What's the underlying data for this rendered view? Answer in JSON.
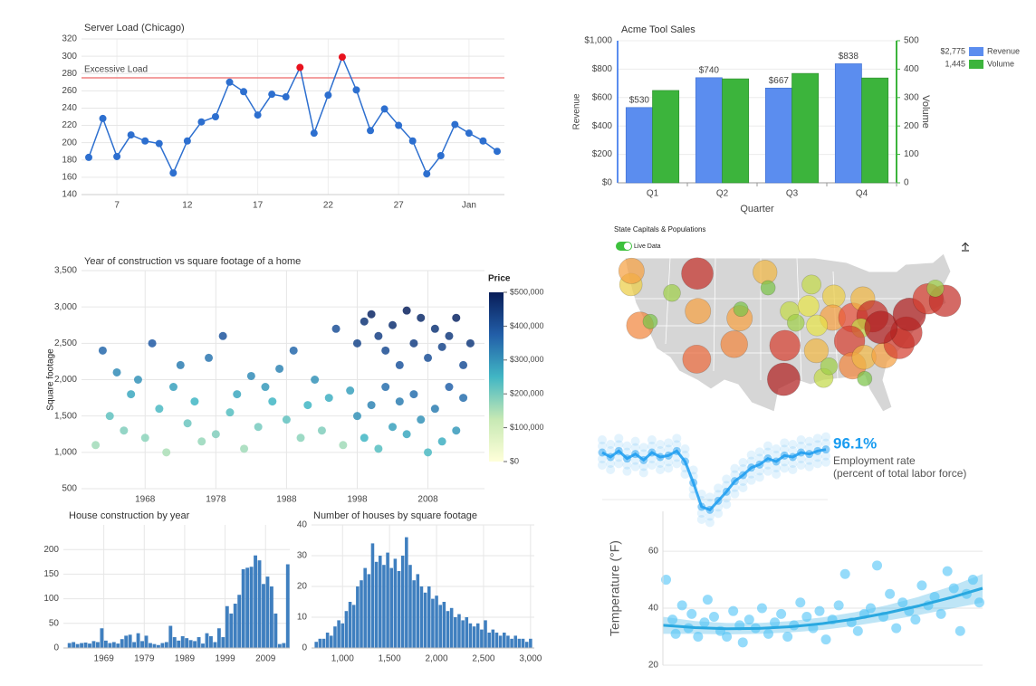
{
  "chart_data": [
    {
      "type": "line",
      "title": "Server Load (Chicago)",
      "categories": [
        null,
        null,
        "7",
        null,
        null,
        null,
        null,
        "12",
        null,
        null,
        null,
        null,
        "17",
        null,
        null,
        null,
        null,
        "22",
        null,
        null,
        null,
        null,
        "27",
        null,
        null,
        null,
        null,
        "Jan",
        null,
        null
      ],
      "values": [
        183,
        228,
        184,
        209,
        202,
        199,
        165,
        202,
        224,
        230,
        270,
        259,
        232,
        256,
        253,
        287,
        211,
        255,
        299,
        261,
        214,
        239,
        220,
        202,
        164,
        185,
        221,
        211,
        202,
        190
      ],
      "color": "#2d6fcf",
      "highlight_color": "#e8121e",
      "annotation": {
        "value": 275,
        "label": "Excessive Load",
        "color": "#f08080"
      },
      "ylim": [
        140,
        320
      ],
      "yticks": [
        140,
        160,
        180,
        200,
        220,
        240,
        260,
        280,
        300,
        320
      ],
      "grid": true
    },
    {
      "type": "bar",
      "title": "Acme Tool Sales",
      "x_label": "Quarter",
      "y_label": "Revenue",
      "y2_label": "Volume",
      "categories": [
        "Q1",
        "Q2",
        "Q3",
        "Q4"
      ],
      "series": [
        {
          "name": "Revenue",
          "color": "#5b8def",
          "values": [
            530,
            740,
            667,
            838
          ],
          "value_labels": [
            "$530",
            "$740",
            "$667",
            "$838"
          ],
          "total": {
            "value": 2775,
            "label": "$2,775"
          }
        },
        {
          "name": "Volume",
          "color": "#3cb43c",
          "axis": "y2",
          "values": [
            325,
            366,
            385,
            369
          ],
          "total": {
            "value": 1445,
            "label": "1,445"
          }
        }
      ],
      "ylim": [
        0,
        1000
      ],
      "yticks": [
        {
          "value": 0,
          "label": "$0"
        },
        {
          "value": 200,
          "label": "$200"
        },
        {
          "value": 400,
          "label": "$400"
        },
        {
          "value": 600,
          "label": "$600"
        },
        {
          "value": 800,
          "label": "$800"
        },
        {
          "value": 1000,
          "label": "$1,000"
        }
      ],
      "y2lim": [
        0,
        500
      ],
      "y2ticks": [
        0,
        100,
        200,
        300,
        400,
        500
      ],
      "legend": "right"
    },
    {
      "type": "scatter",
      "title": "Year of construction vs square footage of a home",
      "y_label": "Square footage",
      "x": [
        1961,
        1962,
        1963,
        1964,
        1965,
        1966,
        1967,
        1968,
        1969,
        1970,
        1971,
        1972,
        1973,
        1974,
        1975,
        1976,
        1977,
        1978,
        1979,
        1980,
        1981,
        1982,
        1983,
        1984,
        1985,
        1986,
        1987,
        1988,
        1989,
        1990,
        1991,
        1992,
        1993,
        1994,
        1995,
        1996,
        1997,
        1998,
        1998,
        1999,
        1999,
        2000,
        2000,
        2001,
        2001,
        2002,
        2002,
        2003,
        2003,
        2004,
        2004,
        2005,
        2005,
        2006,
        2006,
        2007,
        2007,
        2008,
        2008,
        2009,
        2009,
        2010,
        2010,
        2011,
        2011,
        2012,
        2012,
        2013,
        2013,
        2014
      ],
      "y": [
        1100,
        2400,
        1500,
        2100,
        1300,
        1800,
        2000,
        1200,
        2500,
        1600,
        1000,
        1900,
        2200,
        1400,
        1700,
        1150,
        2300,
        1250,
        2600,
        1550,
        1800,
        1050,
        2050,
        1350,
        1900,
        1700,
        2150,
        1450,
        2400,
        1200,
        1650,
        2000,
        1300,
        1750,
        2700,
        1100,
        1850,
        2500,
        1500,
        2800,
        1200,
        2900,
        1650,
        2600,
        1050,
        2400,
        1900,
        2750,
        1350,
        2200,
        1700,
        2950,
        1250,
        2500,
        1800,
        2850,
        1450,
        2300,
        1000,
        2700,
        1600,
        2450,
        1150,
        2600,
        1900,
        2850,
        1300,
        2200,
        1750,
        2500
      ],
      "values": [
        160000,
        360000,
        220000,
        310000,
        190000,
        270000,
        300000,
        180000,
        380000,
        240000,
        150000,
        280000,
        330000,
        210000,
        250000,
        170000,
        340000,
        190000,
        390000,
        230000,
        270000,
        160000,
        310000,
        200000,
        290000,
        250000,
        320000,
        220000,
        360000,
        180000,
        250000,
        300000,
        190000,
        260000,
        400000,
        160000,
        280000,
        420000,
        300000,
        450000,
        250000,
        480000,
        320000,
        430000,
        230000,
        410000,
        350000,
        460000,
        280000,
        390000,
        330000,
        490000,
        270000,
        430000,
        350000,
        470000,
        300000,
        400000,
        240000,
        450000,
        330000,
        420000,
        260000,
        440000,
        370000,
        480000,
        290000,
        400000,
        350000,
        440000
      ],
      "colorscale": [
        "#ffffd9",
        "#c7e9b4",
        "#41b6c4",
        "#225ea8",
        "#081d58"
      ],
      "colorbar": {
        "title": "Price",
        "ticks": [
          {
            "value": 0,
            "label": "$0"
          },
          {
            "value": 100000,
            "label": "$100,000"
          },
          {
            "value": 200000,
            "label": "$200,000"
          },
          {
            "value": 300000,
            "label": "$300,000"
          },
          {
            "value": 400000,
            "label": "$400,000"
          },
          {
            "value": 500000,
            "label": "$500,000"
          }
        ]
      },
      "xlim": [
        1959,
        2016
      ],
      "xticks": [
        1968,
        1978,
        1988,
        1998,
        2008
      ],
      "ylim": [
        500,
        3500
      ],
      "yticks": [
        500,
        {
          "value": 1000,
          "label": "1,000"
        },
        {
          "value": 1500,
          "label": "1,500"
        },
        {
          "value": 2000,
          "label": "2,000"
        },
        {
          "value": 2500,
          "label": "2,500"
        },
        {
          "value": 3000,
          "label": "3,000"
        },
        {
          "value": 3500,
          "label": "3,500"
        }
      ],
      "grid": true
    },
    {
      "type": "histogram",
      "title": "House construction by year",
      "color": "#3f7fbf",
      "bins": [
        1960,
        1961,
        1962,
        1963,
        1964,
        1965,
        1966,
        1967,
        1968,
        1969,
        1970,
        1971,
        1972,
        1973,
        1974,
        1975,
        1976,
        1977,
        1978,
        1979,
        1980,
        1981,
        1982,
        1983,
        1984,
        1985,
        1986,
        1987,
        1988,
        1989,
        1990,
        1991,
        1992,
        1993,
        1994,
        1995,
        1996,
        1997,
        1998,
        1999,
        2000,
        2001,
        2002,
        2003,
        2004,
        2005,
        2006,
        2007,
        2008,
        2009,
        2010,
        2011,
        2012,
        2013,
        2014,
        2015
      ],
      "values": [
        10,
        12,
        8,
        10,
        11,
        9,
        14,
        12,
        40,
        15,
        10,
        12,
        9,
        18,
        25,
        27,
        12,
        30,
        14,
        25,
        10,
        8,
        6,
        10,
        12,
        45,
        22,
        15,
        24,
        20,
        16,
        14,
        22,
        9,
        30,
        24,
        12,
        40,
        22,
        85,
        70,
        90,
        108,
        160,
        163,
        165,
        188,
        178,
        130,
        145,
        125,
        70,
        8,
        10,
        170
      ],
      "xlim": [
        1959,
        2015
      ],
      "xticks": [
        1969,
        1979,
        1989,
        1999,
        2009
      ],
      "ylim": [
        0,
        250
      ],
      "yticks": [
        0,
        50,
        100,
        150,
        200
      ],
      "grid": true
    },
    {
      "type": "histogram",
      "title": "Number of houses by square footage",
      "color": "#3f7fbf",
      "bins": [
        700,
        740,
        780,
        820,
        860,
        900,
        940,
        980,
        1020,
        1060,
        1100,
        1140,
        1180,
        1220,
        1260,
        1300,
        1340,
        1380,
        1420,
        1460,
        1500,
        1540,
        1580,
        1620,
        1660,
        1700,
        1740,
        1780,
        1820,
        1860,
        1900,
        1940,
        1980,
        2020,
        2060,
        2100,
        2140,
        2180,
        2220,
        2260,
        2300,
        2340,
        2380,
        2420,
        2460,
        2500,
        2540,
        2580,
        2620,
        2660,
        2700,
        2740,
        2780,
        2820,
        2860,
        2900,
        2940,
        2980,
        3020
      ],
      "values": [
        2,
        3,
        3,
        5,
        4,
        7,
        9,
        8,
        12,
        15,
        14,
        20,
        22,
        26,
        24,
        34,
        28,
        30,
        27,
        31,
        26,
        29,
        25,
        30,
        36,
        27,
        22,
        24,
        20,
        18,
        20,
        16,
        17,
        14,
        15,
        12,
        13,
        10,
        11,
        9,
        10,
        8,
        7,
        8,
        6,
        9,
        5,
        6,
        5,
        4,
        5,
        4,
        3,
        4,
        3,
        3,
        2,
        3
      ],
      "xlim": [
        670,
        3040
      ],
      "xticks": [
        {
          "value": 1000,
          "label": "1,000"
        },
        {
          "value": 1500,
          "label": "1,500"
        },
        {
          "value": 2000,
          "label": "2,000"
        },
        {
          "value": 2500,
          "label": "2,500"
        },
        {
          "value": 3000,
          "label": "3,000"
        }
      ],
      "ylim": [
        0,
        40
      ],
      "yticks": [
        0,
        10,
        20,
        30,
        40
      ],
      "grid": true
    },
    {
      "type": "map",
      "title": "State Capitals & Populations",
      "toggle_label": "Live Data",
      "lon": [
        -123,
        -122.9,
        -121.5,
        -119.8,
        -116.2,
        -112,
        -111.9,
        -112.1,
        -105.9,
        -105,
        -104.8,
        -100.8,
        -100.3,
        -96.7,
        -95.7,
        -97.5,
        -97.7,
        -92.3,
        -91.1,
        -90.2,
        -93.6,
        -93.1,
        -89.4,
        -89.6,
        -92.2,
        -86.2,
        -84.6,
        -83,
        -84.9,
        -86.8,
        -86.3,
        -84.4,
        -84.3,
        -81,
        -78.6,
        -77.4,
        -81.6,
        -76.9,
        -73.8,
        -71,
        -72.6
      ],
      "lat": [
        44.9,
        47,
        38.6,
        39.2,
        43.6,
        46.6,
        40.8,
        33.4,
        35.7,
        39.7,
        41.1,
        46.8,
        44.4,
        40.8,
        39,
        35.5,
        30.3,
        34.7,
        30.5,
        32.3,
        41.6,
        44.9,
        43.1,
        39.8,
        38.6,
        39.8,
        42.7,
        40,
        38.2,
        36.2,
        32.4,
        33.7,
        30.4,
        34,
        35.8,
        37.5,
        38.3,
        40.3,
        42.7,
        42.4,
        44.3
      ],
      "sizes": [
        6,
        8,
        9,
        2,
        3,
        13,
        8,
        10,
        9,
        8,
        2,
        7,
        2,
        4,
        3,
        12,
        14,
        7,
        4,
        3,
        5,
        4,
        6,
        8,
        5,
        11,
        7,
        13,
        4,
        12,
        9,
        7,
        2,
        8,
        12,
        13,
        14,
        14,
        12,
        13,
        3
      ],
      "colorscale": [
        "#7cc44a",
        "#e6e34a",
        "#f5a142",
        "#e8503a",
        "#b02020"
      ]
    },
    {
      "type": "strip",
      "headline": {
        "value": 96.1,
        "label": "96.1%"
      },
      "label": "Employment rate",
      "sublabel": "(percent of total labor force)",
      "color": "#1a9cf0",
      "values": [
        96.8,
        96.5,
        96.9,
        96.4,
        96.7,
        96.3,
        96.8,
        96.5,
        96.6,
        96.9,
        96.2,
        94.8,
        93.2,
        93.0,
        93.6,
        94.2,
        94.9,
        95.3,
        95.8,
        96.0,
        96.4,
        96.2,
        96.6,
        96.5,
        96.8,
        96.7,
        96.9,
        97.0
      ],
      "ylim": [
        92,
        98
      ]
    },
    {
      "type": "scatter",
      "y_label": "Temperature (°F)",
      "color": "#4fc3f7",
      "x": [
        1,
        3,
        4,
        6,
        8,
        9,
        11,
        13,
        14,
        16,
        18,
        20,
        22,
        24,
        25,
        27,
        29,
        31,
        33,
        35,
        37,
        39,
        41,
        43,
        45,
        47,
        49,
        51,
        53,
        55,
        57,
        59,
        61,
        63,
        65,
        67,
        69,
        71,
        73,
        75,
        77,
        79,
        81,
        83,
        85,
        87,
        89,
        91,
        93,
        95,
        97,
        99
      ],
      "y": [
        50,
        36,
        31,
        41,
        33,
        38,
        30,
        35,
        43,
        37,
        32,
        30,
        39,
        34,
        28,
        36,
        33,
        40,
        31,
        35,
        38,
        30,
        34,
        42,
        37,
        33,
        39,
        29,
        36,
        41,
        52,
        35,
        32,
        38,
        40,
        55,
        37,
        45,
        33,
        42,
        39,
        36,
        48,
        41,
        44,
        38,
        53,
        47,
        32,
        45,
        50,
        42
      ],
      "trend": {
        "x": [
          0,
          10,
          20,
          30,
          40,
          50,
          60,
          70,
          80,
          90,
          100
        ],
        "values": [
          34,
          33.2,
          32.8,
          32.9,
          33.5,
          34.6,
          36.2,
          38.3,
          40.8,
          43.7,
          47
        ],
        "lower": [
          31,
          31,
          30.8,
          31,
          31.5,
          32.4,
          33.8,
          35.6,
          37.6,
          39.8,
          42
        ],
        "upper": [
          37,
          35.5,
          34.8,
          34.8,
          35.5,
          36.8,
          38.6,
          41,
          44,
          47.6,
          52
        ],
        "color": "#29a8e0"
      },
      "xlim": [
        0,
        100
      ],
      "ylim": [
        20,
        74
      ],
      "yticks": [
        20,
        40,
        60
      ],
      "grid": true
    }
  ]
}
